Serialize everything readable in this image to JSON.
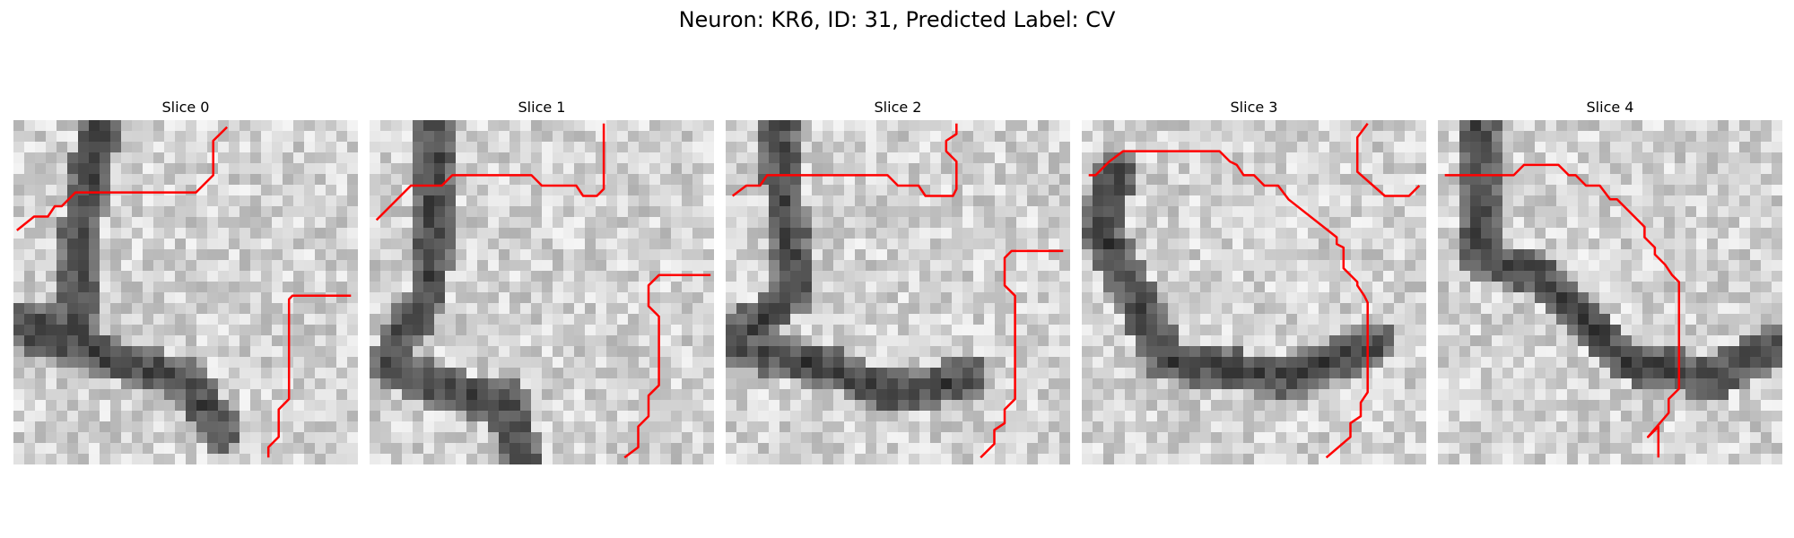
{
  "figure": {
    "title": "Neuron: KR6, ID: 31, Predicted Label: CV"
  },
  "slices": [
    {
      "title": "Slice 0",
      "contour": [
        [
          0.01,
          0.32
        ],
        [
          0.06,
          0.28
        ],
        [
          0.1,
          0.28
        ],
        [
          0.12,
          0.25
        ],
        [
          0.14,
          0.25
        ],
        [
          0.18,
          0.21
        ],
        [
          0.53,
          0.21
        ],
        [
          0.58,
          0.16
        ],
        [
          0.58,
          0.06
        ],
        [
          0.62,
          0.02
        ]
      ],
      "contour2": [
        [
          0.98,
          0.51
        ],
        [
          0.81,
          0.51
        ],
        [
          0.8,
          0.52
        ],
        [
          0.8,
          0.81
        ],
        [
          0.77,
          0.84
        ],
        [
          0.77,
          0.92
        ],
        [
          0.74,
          0.95
        ],
        [
          0.74,
          0.98
        ]
      ]
    },
    {
      "title": "Slice 1",
      "contour": [
        [
          0.02,
          0.29
        ],
        [
          0.12,
          0.19
        ],
        [
          0.21,
          0.19
        ],
        [
          0.24,
          0.16
        ],
        [
          0.47,
          0.16
        ],
        [
          0.5,
          0.19
        ],
        [
          0.6,
          0.19
        ],
        [
          0.62,
          0.22
        ],
        [
          0.66,
          0.22
        ],
        [
          0.68,
          0.2
        ],
        [
          0.68,
          0.01
        ]
      ],
      "contour2": [
        [
          0.99,
          0.45
        ],
        [
          0.84,
          0.45
        ],
        [
          0.81,
          0.48
        ],
        [
          0.81,
          0.54
        ],
        [
          0.84,
          0.57
        ],
        [
          0.84,
          0.77
        ],
        [
          0.81,
          0.8
        ],
        [
          0.81,
          0.86
        ],
        [
          0.78,
          0.89
        ],
        [
          0.78,
          0.95
        ],
        [
          0.74,
          0.98
        ]
      ]
    },
    {
      "title": "Slice 2",
      "contour": [
        [
          0.02,
          0.22
        ],
        [
          0.06,
          0.19
        ],
        [
          0.1,
          0.19
        ],
        [
          0.12,
          0.16
        ],
        [
          0.47,
          0.16
        ],
        [
          0.5,
          0.19
        ],
        [
          0.56,
          0.19
        ],
        [
          0.58,
          0.22
        ],
        [
          0.63,
          0.22
        ],
        [
          0.66,
          0.22
        ],
        [
          0.67,
          0.2
        ],
        [
          0.67,
          0.12
        ],
        [
          0.64,
          0.09
        ],
        [
          0.64,
          0.06
        ],
        [
          0.67,
          0.04
        ],
        [
          0.67,
          0.01
        ]
      ],
      "contour2": [
        [
          0.98,
          0.38
        ],
        [
          0.83,
          0.38
        ],
        [
          0.81,
          0.4
        ],
        [
          0.81,
          0.48
        ],
        [
          0.84,
          0.51
        ],
        [
          0.84,
          0.81
        ],
        [
          0.81,
          0.84
        ],
        [
          0.81,
          0.88
        ],
        [
          0.78,
          0.9
        ],
        [
          0.78,
          0.94
        ],
        [
          0.74,
          0.98
        ]
      ]
    },
    {
      "title": "Slice 3",
      "contour": [
        [
          0.02,
          0.16
        ],
        [
          0.04,
          0.16
        ],
        [
          0.06,
          0.14
        ],
        [
          0.08,
          0.12
        ],
        [
          0.12,
          0.09
        ],
        [
          0.4,
          0.09
        ],
        [
          0.43,
          0.12
        ],
        [
          0.45,
          0.13
        ],
        [
          0.47,
          0.16
        ],
        [
          0.5,
          0.16
        ],
        [
          0.53,
          0.19
        ],
        [
          0.57,
          0.19
        ],
        [
          0.6,
          0.23
        ],
        [
          0.74,
          0.34
        ],
        [
          0.74,
          0.36
        ],
        [
          0.76,
          0.37
        ],
        [
          0.76,
          0.43
        ],
        [
          0.8,
          0.47
        ],
        [
          0.8,
          0.48
        ],
        [
          0.82,
          0.51
        ],
        [
          0.83,
          0.53
        ],
        [
          0.83,
          0.79
        ],
        [
          0.81,
          0.82
        ],
        [
          0.81,
          0.86
        ],
        [
          0.78,
          0.88
        ],
        [
          0.78,
          0.92
        ],
        [
          0.71,
          0.98
        ]
      ],
      "contour2": [
        [
          0.83,
          0.01
        ],
        [
          0.8,
          0.05
        ],
        [
          0.8,
          0.15
        ],
        [
          0.88,
          0.22
        ],
        [
          0.95,
          0.22
        ],
        [
          0.98,
          0.19
        ]
      ]
    },
    {
      "title": "Slice 4",
      "contour": [
        [
          0.02,
          0.16
        ],
        [
          0.22,
          0.16
        ],
        [
          0.25,
          0.13
        ],
        [
          0.35,
          0.13
        ],
        [
          0.38,
          0.16
        ],
        [
          0.4,
          0.16
        ],
        [
          0.43,
          0.19
        ],
        [
          0.47,
          0.19
        ],
        [
          0.5,
          0.23
        ],
        [
          0.52,
          0.23
        ],
        [
          0.6,
          0.31
        ],
        [
          0.6,
          0.34
        ],
        [
          0.63,
          0.37
        ],
        [
          0.63,
          0.39
        ],
        [
          0.66,
          0.42
        ],
        [
          0.68,
          0.45
        ],
        [
          0.7,
          0.47
        ],
        [
          0.7,
          0.78
        ],
        [
          0.67,
          0.81
        ],
        [
          0.67,
          0.85
        ],
        [
          0.61,
          0.92
        ],
        [
          0.64,
          0.89
        ],
        [
          0.64,
          0.92
        ],
        [
          0.64,
          0.98
        ]
      ],
      "contour2": []
    }
  ]
}
